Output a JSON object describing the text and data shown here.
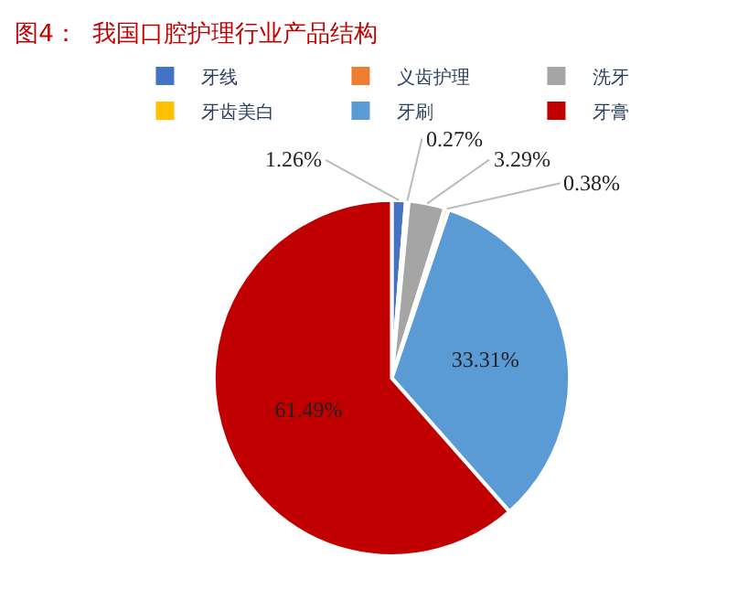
{
  "chart_data": {
    "type": "pie",
    "title": "图4：  我国口腔护理行业产品结构",
    "categories": [
      "牙线",
      "义齿护理",
      "洗牙",
      "牙齿美白",
      "牙刷",
      "牙膏"
    ],
    "values": [
      1.26,
      0.27,
      3.29,
      0.38,
      33.31,
      61.49
    ],
    "colors": [
      "#4472c4",
      "#ed7d31",
      "#a5a5a5",
      "#ffc000",
      "#5b9bd5",
      "#c00000"
    ],
    "value_labels": [
      "1.26%",
      "0.27%",
      "3.29%",
      "0.38%",
      "33.31%",
      "61.49%"
    ],
    "legend": "top"
  }
}
